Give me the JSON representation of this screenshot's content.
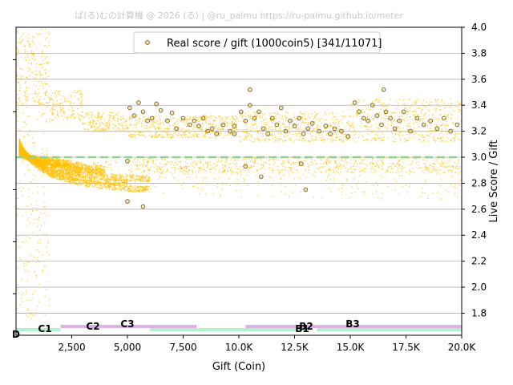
{
  "watermark": "ぱ(る)むの計算機 @ 2026 (る) | @ru_palmu  https://ru-palmu.github.io/meter",
  "chart_data": {
    "type": "scatter",
    "xlabel": "Gift (Coin)",
    "ylabel": "Live Score / Gift",
    "xlim": [
      0,
      20000
    ],
    "ylim": [
      1.63,
      4.0
    ],
    "xticks": [
      2500,
      5000,
      7500,
      10000,
      12500,
      15000,
      17500,
      20000
    ],
    "xtick_labels": [
      "2,500",
      "5,000",
      "7,500",
      "10.0K",
      "12.5K",
      "15.0K",
      "17.5K",
      "20.0K"
    ],
    "yticks": [
      1.8,
      2.0,
      2.2,
      2.4,
      2.6,
      2.8,
      3.0,
      3.2,
      3.4,
      3.6,
      3.8,
      4.0
    ],
    "ytick_labels": [
      "1.8",
      "2.0",
      "2.2",
      "2.4",
      "2.6",
      "2.8",
      "3.0",
      "3.2",
      "3.4",
      "3.6",
      "3.8",
      "4.0"
    ],
    "grid": "horizontal",
    "legend": {
      "position": "top-center",
      "label": "Real score / gift (1000coin5) [341/11071]"
    },
    "reference_line": {
      "y": 3.0,
      "color": "#90d090",
      "style": "dashed"
    },
    "colors": {
      "points": "#ffc000",
      "real_points_edge": "#555555",
      "band_green": "#aaf0c8",
      "band_purple": "#d8a8e0"
    },
    "curves": [
      {
        "k": 4500,
        "x_range": [
          0,
          6000
        ]
      },
      {
        "k": 3750,
        "x_range": [
          0,
          5000
        ]
      },
      {
        "k": 3000,
        "x_range": [
          0,
          6000
        ]
      },
      {
        "k": 2300,
        "x_range": [
          0,
          4000
        ]
      },
      {
        "k": 1800,
        "x_range": [
          0,
          4000
        ]
      },
      {
        "k": 1500,
        "x_range": [
          0,
          3000
        ]
      },
      {
        "k": 1200,
        "x_range": [
          0,
          2500
        ]
      },
      {
        "k": 1000,
        "x_range": [
          0,
          2000
        ]
      }
    ],
    "main_band_segments": [
      {
        "x_range": [
          0,
          1500
        ],
        "y_range": [
          3.4,
          4.0
        ]
      },
      {
        "x_range": [
          1500,
          3000
        ],
        "y_range": [
          3.28,
          3.52
        ]
      },
      {
        "x_range": [
          3000,
          5000
        ],
        "y_range": [
          3.2,
          3.35
        ]
      },
      {
        "x_range": [
          5000,
          10000
        ],
        "y_range": [
          3.15,
          3.32
        ]
      },
      {
        "x_range": [
          10000,
          15000
        ],
        "y_range": [
          3.12,
          3.35
        ]
      },
      {
        "x_range": [
          15000,
          20000
        ],
        "y_range": [
          3.12,
          3.45
        ]
      }
    ],
    "real_points": [
      [
        5100,
        3.38
      ],
      [
        5300,
        3.32
      ],
      [
        5500,
        3.42
      ],
      [
        5700,
        3.35
      ],
      [
        5900,
        3.28
      ],
      [
        6100,
        3.3
      ],
      [
        6300,
        3.41
      ],
      [
        6500,
        3.36
      ],
      [
        6800,
        3.28
      ],
      [
        7000,
        3.34
      ],
      [
        7200,
        3.22
      ],
      [
        7500,
        3.3
      ],
      [
        7800,
        3.25
      ],
      [
        8000,
        3.28
      ],
      [
        8200,
        3.24
      ],
      [
        8400,
        3.3
      ],
      [
        8600,
        3.2
      ],
      [
        8800,
        3.22
      ],
      [
        9000,
        3.18
      ],
      [
        9300,
        3.25
      ],
      [
        9600,
        3.2
      ],
      [
        9800,
        3.24
      ],
      [
        10100,
        3.35
      ],
      [
        10300,
        3.28
      ],
      [
        10500,
        3.4
      ],
      [
        10700,
        3.3
      ],
      [
        10900,
        3.35
      ],
      [
        11100,
        3.22
      ],
      [
        11300,
        3.18
      ],
      [
        11500,
        3.3
      ],
      [
        11700,
        3.25
      ],
      [
        11900,
        3.38
      ],
      [
        12100,
        3.2
      ],
      [
        12300,
        3.28
      ],
      [
        12500,
        3.24
      ],
      [
        12700,
        3.3
      ],
      [
        12900,
        3.18
      ],
      [
        13100,
        3.22
      ],
      [
        13300,
        3.26
      ],
      [
        13600,
        3.2
      ],
      [
        13900,
        3.24
      ],
      [
        14100,
        3.18
      ],
      [
        14300,
        3.22
      ],
      [
        14600,
        3.2
      ],
      [
        14900,
        3.16
      ],
      [
        15200,
        3.42
      ],
      [
        15400,
        3.35
      ],
      [
        15600,
        3.3
      ],
      [
        15800,
        3.28
      ],
      [
        16000,
        3.4
      ],
      [
        16200,
        3.32
      ],
      [
        16400,
        3.25
      ],
      [
        16600,
        3.35
      ],
      [
        16800,
        3.3
      ],
      [
        17000,
        3.22
      ],
      [
        17200,
        3.28
      ],
      [
        17400,
        3.35
      ],
      [
        17700,
        3.2
      ],
      [
        18000,
        3.3
      ],
      [
        18300,
        3.25
      ],
      [
        18600,
        3.28
      ],
      [
        18900,
        3.22
      ],
      [
        19200,
        3.3
      ],
      [
        19500,
        3.2
      ],
      [
        19800,
        3.25
      ],
      [
        10500,
        3.52
      ],
      [
        16500,
        3.52
      ],
      [
        10300,
        2.93
      ],
      [
        13000,
        2.75
      ],
      [
        12800,
        2.95
      ],
      [
        5000,
        2.97
      ],
      [
        5000,
        2.66
      ],
      [
        5700,
        2.62
      ],
      [
        11000,
        2.85
      ],
      [
        9800,
        3.18
      ]
    ]
  },
  "bands": [
    {
      "label": "D",
      "x_range": [
        0,
        700
      ],
      "row": "low",
      "color": "#aaf0c8"
    },
    {
      "label": "C1",
      "x_range": [
        700,
        2000
      ],
      "row": "low",
      "color": "#aaf0c8"
    },
    {
      "label": "C2",
      "x_range": [
        2000,
        4000
      ],
      "row": "high",
      "color": "#d8a8e0"
    },
    {
      "label": "C3",
      "x_range": [
        4000,
        8100
      ],
      "row": "high",
      "color": "#d8a8e0"
    },
    {
      "label": "B1",
      "x_range": [
        6000,
        13000
      ],
      "row": "low",
      "color": "#aaf0c8"
    },
    {
      "label": "B2",
      "x_range": [
        10300,
        20000
      ],
      "row": "high",
      "color": "#d8a8e0"
    },
    {
      "label": "B3",
      "x_range": [
        13500,
        20000
      ],
      "row": "low",
      "color": "#aaf0c8"
    }
  ]
}
